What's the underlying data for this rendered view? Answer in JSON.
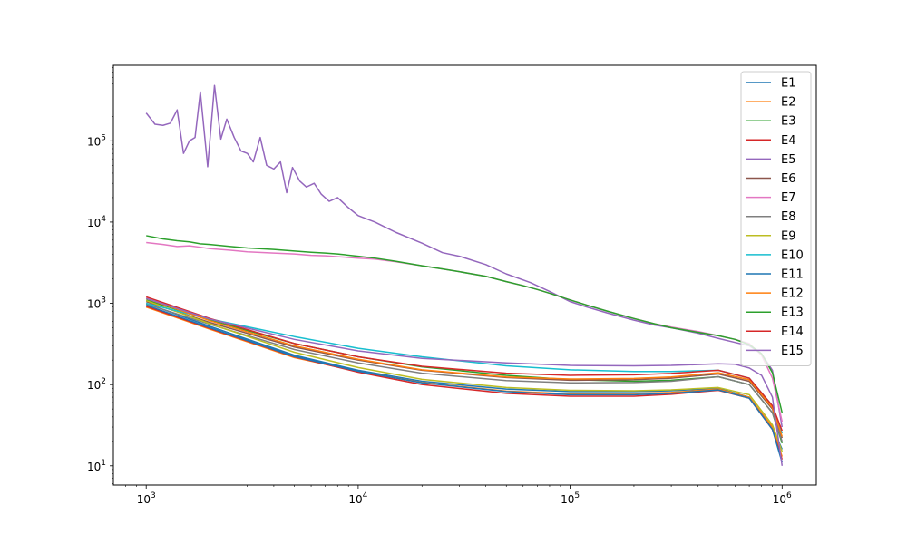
{
  "chart_data": {
    "type": "line",
    "title": "",
    "xlabel": "",
    "ylabel": "",
    "x_scale": "log",
    "y_scale": "log",
    "xlim": [
      700,
      1450000
    ],
    "ylim": [
      5.8,
      850000
    ],
    "grid": false,
    "legend_position": "top-right",
    "x_ticks": [
      {
        "value": 1000,
        "mant": "10",
        "exp": "3"
      },
      {
        "value": 10000,
        "mant": "10",
        "exp": "4"
      },
      {
        "value": 100000,
        "mant": "10",
        "exp": "5"
      },
      {
        "value": 1000000,
        "mant": "10",
        "exp": "6"
      }
    ],
    "y_ticks": [
      {
        "value": 10,
        "mant": "10",
        "exp": "1"
      },
      {
        "value": 100,
        "mant": "10",
        "exp": "2"
      },
      {
        "value": 1000,
        "mant": "10",
        "exp": "3"
      },
      {
        "value": 10000,
        "mant": "10",
        "exp": "4"
      },
      {
        "value": 100000,
        "mant": "10",
        "exp": "5"
      }
    ],
    "series": [
      {
        "name": "E1",
        "color": "#1f77b4",
        "x": [
          1000,
          2000,
          5000,
          10000,
          20000,
          50000,
          100000,
          200000,
          300000,
          500000,
          700000,
          900000,
          1000000
        ],
        "y": [
          1000,
          520,
          230,
          150,
          110,
          88,
          82,
          82,
          84,
          90,
          70,
          30,
          16
        ]
      },
      {
        "name": "E2",
        "color": "#ff7f0e",
        "x": [
          1000,
          2000,
          5000,
          10000,
          20000,
          50000,
          100000,
          200000,
          300000,
          500000,
          700000,
          900000,
          1000000
        ],
        "y": [
          900,
          480,
          215,
          145,
          106,
          83,
          77,
          78,
          80,
          88,
          70,
          30,
          13
        ]
      },
      {
        "name": "E3",
        "color": "#2ca02c",
        "x": [
          1000,
          2000,
          5000,
          10000,
          20000,
          50000,
          100000,
          200000,
          300000,
          500000,
          700000,
          900000,
          1000000
        ],
        "y": [
          1100,
          620,
          320,
          220,
          165,
          130,
          115,
          110,
          113,
          125,
          100,
          45,
          19
        ]
      },
      {
        "name": "E4",
        "color": "#d62728",
        "x": [
          1000,
          2000,
          5000,
          10000,
          20000,
          50000,
          100000,
          200000,
          300000,
          500000,
          700000,
          900000,
          1000000
        ],
        "y": [
          920,
          490,
          220,
          142,
          100,
          78,
          72,
          72,
          76,
          85,
          68,
          28,
          12
        ]
      },
      {
        "name": "E5",
        "color": "#9467bd",
        "x": [
          1000,
          1100,
          1200,
          1300,
          1400,
          1500,
          1600,
          1700,
          1800,
          1950,
          2100,
          2250,
          2400,
          2600,
          2800,
          3000,
          3200,
          3450,
          3700,
          4000,
          4300,
          4600,
          4900,
          5300,
          5700,
          6200,
          6700,
          7300,
          8000,
          9000,
          10000,
          12000,
          15000,
          20000,
          25000,
          30000,
          40000,
          50000,
          65000,
          80000,
          100000,
          120000,
          150000,
          200000,
          250000,
          300000,
          400000,
          500000,
          600000,
          700000,
          800000,
          900000,
          1000000
        ],
        "y": [
          220000,
          160000,
          155000,
          165000,
          240000,
          70000,
          100000,
          110000,
          400000,
          48000,
          480000,
          105000,
          185000,
          110000,
          75000,
          70000,
          55000,
          110000,
          50000,
          45000,
          55000,
          23000,
          47000,
          32000,
          27000,
          30000,
          22000,
          18000,
          20000,
          15000,
          12000,
          10000,
          7500,
          5500,
          4200,
          3800,
          3000,
          2300,
          1800,
          1400,
          1050,
          900,
          760,
          620,
          540,
          500,
          430,
          370,
          330,
          300,
          240,
          150,
          30
        ]
      },
      {
        "name": "E6",
        "color": "#8c564b",
        "x": [
          1000,
          2000,
          5000,
          10000,
          20000,
          50000,
          100000,
          200000,
          300000,
          500000,
          700000,
          900000,
          1000000
        ],
        "y": [
          1050,
          580,
          290,
          200,
          150,
          122,
          113,
          115,
          120,
          135,
          110,
          50,
          22
        ]
      },
      {
        "name": "E7",
        "color": "#e377c2",
        "x": [
          1000,
          1200,
          1400,
          1600,
          1800,
          2000,
          2500,
          3000,
          4000,
          5000,
          6000,
          7000,
          8000,
          10000,
          12000,
          15000,
          20000,
          25000,
          30000,
          40000,
          50000,
          60000,
          70000,
          80000,
          100000,
          120000,
          150000,
          200000,
          250000,
          300000,
          400000,
          500000,
          600000,
          700000,
          800000,
          900000,
          1000000
        ],
        "y": [
          5600,
          5300,
          5000,
          5100,
          4900,
          4700,
          4500,
          4300,
          4150,
          4050,
          3900,
          3850,
          3750,
          3600,
          3500,
          3250,
          2900,
          2650,
          2450,
          2150,
          1850,
          1650,
          1480,
          1330,
          1100,
          950,
          800,
          650,
          560,
          510,
          450,
          400,
          360,
          320,
          230,
          120,
          35
        ]
      },
      {
        "name": "E8",
        "color": "#7f7f7f",
        "x": [
          1000,
          2000,
          5000,
          10000,
          20000,
          50000,
          100000,
          200000,
          300000,
          500000,
          700000,
          900000,
          1000000
        ],
        "y": [
          980,
          550,
          270,
          185,
          138,
          112,
          105,
          106,
          110,
          125,
          100,
          45,
          20
        ]
      },
      {
        "name": "E9",
        "color": "#bcbd22",
        "x": [
          1000,
          2000,
          5000,
          10000,
          20000,
          50000,
          100000,
          200000,
          300000,
          500000,
          700000,
          900000,
          1000000
        ],
        "y": [
          1080,
          560,
          250,
          162,
          116,
          92,
          85,
          84,
          86,
          92,
          75,
          32,
          15
        ]
      },
      {
        "name": "E10",
        "color": "#17becf",
        "x": [
          1000,
          2000,
          5000,
          10000,
          20000,
          50000,
          100000,
          200000,
          300000,
          500000,
          700000,
          900000,
          1000000
        ],
        "y": [
          1000,
          640,
          390,
          280,
          220,
          170,
          152,
          145,
          145,
          150,
          120,
          55,
          25
        ]
      },
      {
        "name": "E11",
        "color": "#1f77b4",
        "x": [
          1000,
          2000,
          5000,
          10000,
          20000,
          50000,
          100000,
          200000,
          300000,
          500000,
          700000,
          900000,
          1000000
        ],
        "y": [
          950,
          500,
          222,
          146,
          105,
          82,
          75,
          75,
          78,
          86,
          68,
          28,
          11
        ]
      },
      {
        "name": "E12",
        "color": "#ff7f0e",
        "x": [
          1000,
          2000,
          5000,
          10000,
          20000,
          50000,
          100000,
          200000,
          300000,
          500000,
          700000,
          900000,
          1000000
        ],
        "y": [
          1150,
          610,
          300,
          205,
          152,
          124,
          117,
          119,
          124,
          140,
          115,
          52,
          23
        ]
      },
      {
        "name": "E13",
        "color": "#2ca02c",
        "x": [
          1000,
          1200,
          1400,
          1600,
          1800,
          2000,
          2500,
          3000,
          4000,
          5000,
          6000,
          7000,
          8000,
          10000,
          12000,
          15000,
          20000,
          25000,
          30000,
          40000,
          50000,
          60000,
          70000,
          80000,
          100000,
          120000,
          150000,
          200000,
          250000,
          300000,
          400000,
          500000,
          600000,
          700000,
          800000,
          900000,
          1000000
        ],
        "y": [
          6800,
          6200,
          5900,
          5700,
          5400,
          5300,
          5000,
          4800,
          4600,
          4400,
          4250,
          4150,
          4050,
          3800,
          3600,
          3300,
          2900,
          2650,
          2450,
          2150,
          1850,
          1650,
          1480,
          1330,
          1100,
          950,
          800,
          650,
          560,
          500,
          440,
          400,
          360,
          310,
          240,
          140,
          45
        ]
      },
      {
        "name": "E14",
        "color": "#d62728",
        "x": [
          1000,
          2000,
          5000,
          10000,
          20000,
          50000,
          100000,
          200000,
          300000,
          500000,
          700000,
          900000,
          1000000
        ],
        "y": [
          1200,
          650,
          320,
          220,
          168,
          138,
          130,
          132,
          137,
          150,
          120,
          55,
          27
        ]
      },
      {
        "name": "E15",
        "color": "#9467bd",
        "x": [
          1000,
          2000,
          5000,
          10000,
          20000,
          50000,
          100000,
          200000,
          300000,
          500000,
          600000,
          700000,
          800000,
          900000,
          1000000
        ],
        "y": [
          1150,
          640,
          360,
          260,
          210,
          185,
          172,
          170,
          172,
          180,
          178,
          160,
          130,
          70,
          10
        ]
      }
    ]
  }
}
